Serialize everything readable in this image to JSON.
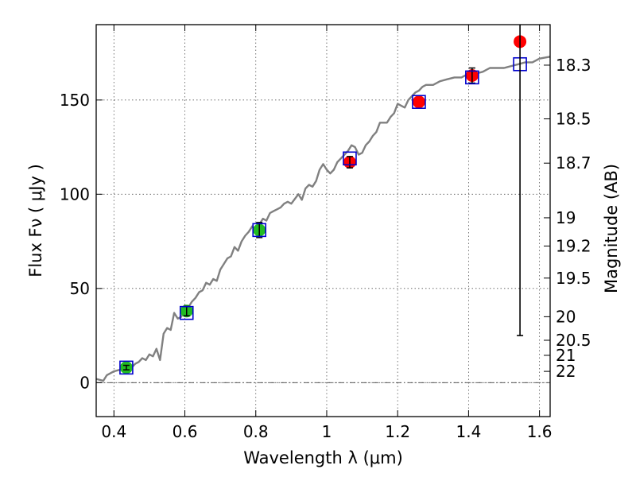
{
  "chart_data": {
    "type": "scatter",
    "xlabel": "Wavelength  λ (μm)",
    "ylabel": "Flux  Fν  ( μJy )",
    "right_ylabel": "Magnitude (AB)",
    "xlim": [
      0.35,
      1.63
    ],
    "ylim": [
      -18,
      190
    ],
    "xticks": [
      {
        "value": 0.4,
        "label": "0.4"
      },
      {
        "value": 0.6,
        "label": "0.6"
      },
      {
        "value": 0.8,
        "label": "0.8"
      },
      {
        "value": 1.0,
        "label": "1"
      },
      {
        "value": 1.2,
        "label": "1.2"
      },
      {
        "value": 1.4,
        "label": "1.4"
      },
      {
        "value": 1.6,
        "label": "1.6"
      }
    ],
    "yticks": [
      {
        "value": 0,
        "label": "0"
      },
      {
        "value": 50,
        "label": "50"
      },
      {
        "value": 100,
        "label": "100"
      },
      {
        "value": 150,
        "label": "150"
      }
    ],
    "right_yticks": [
      {
        "value": 168.5,
        "label": "18.3"
      },
      {
        "value": 140.0,
        "label": "18.5"
      },
      {
        "value": 116.5,
        "label": "18.7"
      },
      {
        "value": 87.5,
        "label": "19"
      },
      {
        "value": 72.5,
        "label": "19.2"
      },
      {
        "value": 55.5,
        "label": "19.5"
      },
      {
        "value": 35.0,
        "label": "20"
      },
      {
        "value": 22.5,
        "label": "20.5"
      },
      {
        "value": 14.5,
        "label": "21"
      },
      {
        "value": 6.0,
        "label": "22"
      }
    ],
    "grid": true,
    "zero_line": true,
    "series": [
      {
        "kind": "line",
        "color": "#808080",
        "x": [
          0.35,
          0.37,
          0.38,
          0.4,
          0.42,
          0.44,
          0.45,
          0.46,
          0.47,
          0.48,
          0.49,
          0.5,
          0.51,
          0.52,
          0.53,
          0.54,
          0.55,
          0.56,
          0.57,
          0.58,
          0.59,
          0.6,
          0.61,
          0.62,
          0.63,
          0.64,
          0.65,
          0.66,
          0.67,
          0.68,
          0.69,
          0.7,
          0.71,
          0.72,
          0.73,
          0.74,
          0.75,
          0.76,
          0.77,
          0.78,
          0.79,
          0.8,
          0.81,
          0.82,
          0.83,
          0.84,
          0.85,
          0.86,
          0.87,
          0.88,
          0.89,
          0.9,
          0.92,
          0.93,
          0.94,
          0.95,
          0.96,
          0.97,
          0.98,
          0.99,
          1.0,
          1.01,
          1.02,
          1.03,
          1.04,
          1.05,
          1.06,
          1.07,
          1.08,
          1.09,
          1.1,
          1.11,
          1.12,
          1.13,
          1.14,
          1.15,
          1.16,
          1.17,
          1.18,
          1.19,
          1.2,
          1.21,
          1.22,
          1.23,
          1.24,
          1.25,
          1.26,
          1.27,
          1.28,
          1.3,
          1.32,
          1.34,
          1.36,
          1.38,
          1.4,
          1.42,
          1.44,
          1.46,
          1.48,
          1.5,
          1.52,
          1.54,
          1.56,
          1.58,
          1.6,
          1.63
        ],
        "y": [
          2,
          1,
          4,
          6,
          7,
          9,
          8,
          10,
          11,
          13,
          12,
          15,
          14,
          18,
          12,
          26,
          29,
          28,
          37,
          34,
          35,
          41,
          40,
          43,
          45,
          48,
          49,
          53,
          52,
          55,
          54,
          60,
          63,
          66,
          67,
          72,
          70,
          75,
          78,
          80,
          83,
          81,
          84,
          87,
          86,
          90,
          91,
          92,
          93,
          95,
          96,
          95,
          100,
          97,
          103,
          105,
          104,
          107,
          113,
          116,
          113,
          111,
          113,
          117,
          119,
          121,
          123,
          126,
          125,
          121,
          122,
          126,
          128,
          131,
          133,
          138,
          138,
          138,
          141,
          143,
          148,
          147,
          146,
          150,
          152,
          154,
          155,
          157,
          158,
          158,
          160,
          161,
          162,
          162,
          164,
          164,
          165,
          167,
          167,
          167,
          168,
          169,
          170,
          170,
          172,
          173
        ]
      },
      {
        "kind": "points",
        "marker": "circle",
        "color": "#22bb22",
        "x": [
          0.435,
          0.605,
          0.81
        ],
        "y": [
          8,
          38,
          81
        ],
        "err": [
          1.2,
          2.5,
          4
        ]
      },
      {
        "kind": "points",
        "marker": "circle",
        "color": "#ff0000",
        "x": [
          1.065,
          1.26,
          1.41,
          1.545
        ],
        "y": [
          117,
          149,
          163,
          181
        ],
        "err": [
          3,
          0,
          4,
          0
        ]
      },
      {
        "kind": "points",
        "marker": "square",
        "color": "#0000cc",
        "x": [
          0.435,
          0.605,
          0.81,
          1.065,
          1.26,
          1.41,
          1.545
        ],
        "y": [
          8,
          37,
          81,
          119,
          149,
          162,
          169
        ]
      },
      {
        "kind": "errorbar",
        "color": "#000000",
        "x": [
          1.545
        ],
        "y_low": [
          25
        ],
        "y_high": [
          190
        ]
      }
    ]
  }
}
